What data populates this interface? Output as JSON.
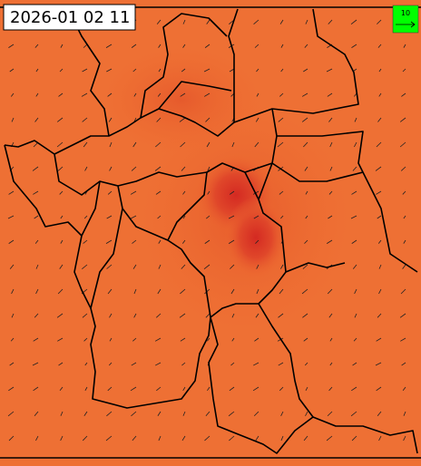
{
  "timestamp": "2026-01 02 11",
  "legend": {
    "label": "10"
  }
}
